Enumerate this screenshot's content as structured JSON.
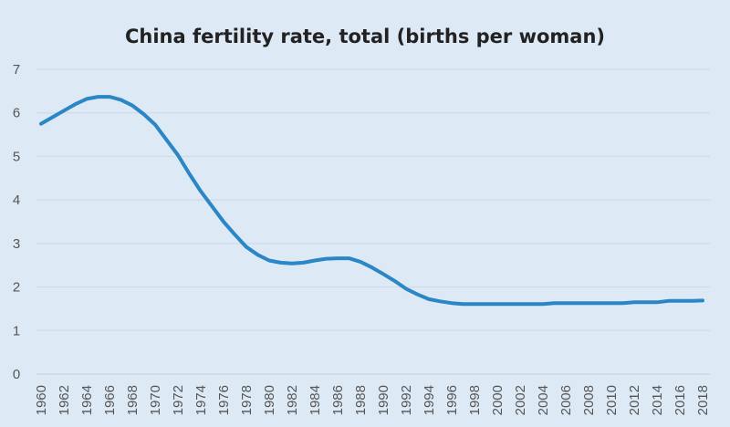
{
  "chart_data": {
    "type": "line",
    "title": "China fertility rate, total (births per woman)",
    "xlabel": "",
    "ylabel": "",
    "ylim": [
      0,
      7
    ],
    "yticks": [
      0,
      1,
      2,
      3,
      4,
      5,
      6,
      7
    ],
    "xlim": [
      1960,
      2018
    ],
    "xticks": [
      1960,
      1962,
      1964,
      1966,
      1968,
      1970,
      1972,
      1974,
      1976,
      1978,
      1980,
      1982,
      1984,
      1986,
      1988,
      1990,
      1992,
      1994,
      1996,
      1998,
      2000,
      2002,
      2004,
      2006,
      2008,
      2010,
      2012,
      2014,
      2016,
      2018
    ],
    "grid": "horizontal",
    "line_color": "#2a86c4",
    "background_color": "#dde9f5",
    "x": [
      1960,
      1961,
      1962,
      1963,
      1964,
      1965,
      1966,
      1967,
      1968,
      1969,
      1970,
      1971,
      1972,
      1973,
      1974,
      1975,
      1976,
      1977,
      1978,
      1979,
      1980,
      1981,
      1982,
      1983,
      1984,
      1985,
      1986,
      1987,
      1988,
      1989,
      1990,
      1991,
      1992,
      1993,
      1994,
      1995,
      1996,
      1997,
      1998,
      1999,
      2000,
      2001,
      2002,
      2003,
      2004,
      2005,
      2006,
      2007,
      2008,
      2009,
      2010,
      2011,
      2012,
      2013,
      2014,
      2015,
      2016,
      2017,
      2018
    ],
    "values": [
      5.75,
      5.9,
      6.05,
      6.2,
      6.32,
      6.37,
      6.37,
      6.3,
      6.17,
      5.97,
      5.73,
      5.38,
      5.03,
      4.6,
      4.2,
      3.85,
      3.5,
      3.2,
      2.92,
      2.74,
      2.61,
      2.56,
      2.54,
      2.56,
      2.61,
      2.65,
      2.66,
      2.66,
      2.58,
      2.45,
      2.3,
      2.14,
      1.96,
      1.83,
      1.72,
      1.67,
      1.63,
      1.61,
      1.61,
      1.61,
      1.61,
      1.61,
      1.61,
      1.61,
      1.61,
      1.63,
      1.63,
      1.63,
      1.63,
      1.63,
      1.63,
      1.63,
      1.65,
      1.65,
      1.65,
      1.68,
      1.68,
      1.68,
      1.69
    ]
  }
}
